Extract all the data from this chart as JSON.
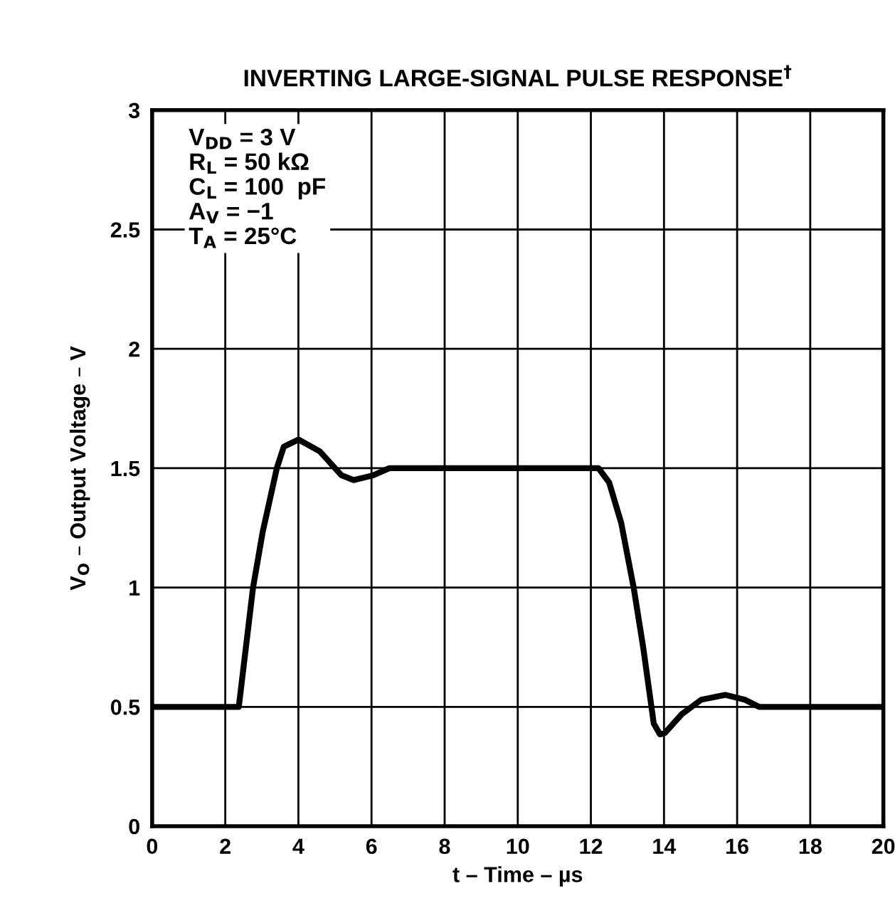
{
  "chart_data": {
    "type": "line",
    "title": "INVERTING LARGE-SIGNAL PULSE RESPONSE$^{†}$",
    "xlabel": "t – Time – µs",
    "ylabel": "V$_{O}$ – Output Voltage – V",
    "annotations": [
      "V$_{DD}$ = 3 V",
      "R$_{L}$ = 50 kΩ",
      "C$_{L}$ = 100  pF",
      "A$_{V}$ = −1",
      "T$_{A}$ = 25°C"
    ],
    "x": [
      0,
      2.37,
      2.76,
      3.02,
      3.41,
      3.6,
      4.0,
      4.59,
      5.18,
      5.51,
      6.04,
      6.49,
      12.21,
      12.5,
      12.83,
      13.17,
      13.43,
      13.72,
      13.89,
      14.02,
      14.49,
      15.02,
      15.68,
      16.21,
      16.6,
      20
    ],
    "series": [
      {
        "color": "#000000",
        "values": [
          0.5,
          0.5,
          1.0,
          1.23,
          1.5,
          1.59,
          1.62,
          1.57,
          1.47,
          1.45,
          1.47,
          1.5,
          1.5,
          1.44,
          1.27,
          1.0,
          0.75,
          0.43,
          0.385,
          0.39,
          0.47,
          0.53,
          0.55,
          0.53,
          0.5,
          0.5
        ]
      }
    ],
    "xlim": [
      0,
      20
    ],
    "ylim": [
      0,
      3
    ],
    "xticks": [
      0,
      2,
      4,
      6,
      8,
      10,
      12,
      14,
      16,
      18,
      20
    ],
    "yticks": [
      0,
      0.5,
      1,
      1.5,
      2,
      2.5,
      3
    ],
    "grid": true,
    "marker": "none",
    "line_style": "solid"
  }
}
